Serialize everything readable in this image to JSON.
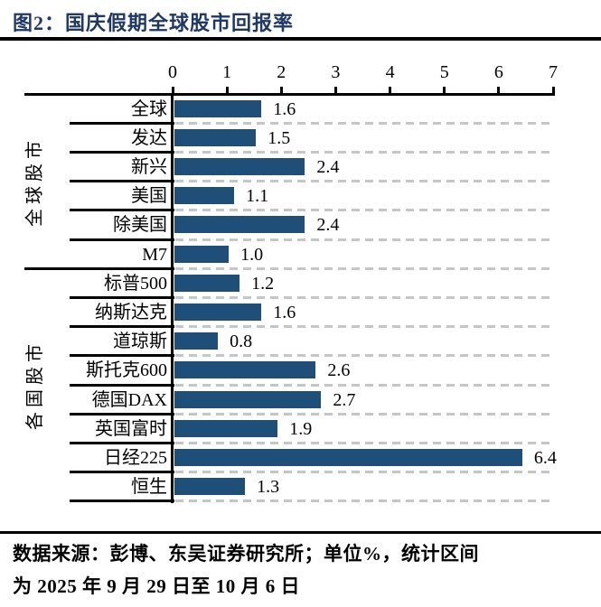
{
  "title": "图2：国庆假期全球股市回报率",
  "footer": {
    "line1": "数据来源：彭博、东吴证券研究所；单位%，统计区间",
    "line2": "为 2025 年 9 月 29 日至 10 月 6 日"
  },
  "colors": {
    "bar": "#1F4E79",
    "title_text": "#1F3864",
    "axis": "#000000",
    "dashed_grid": "#C6C6C6",
    "background": "#FFFFFF"
  },
  "chart_data": {
    "type": "bar",
    "orientation": "horizontal",
    "title": "图2：国庆假期全球股市回报率",
    "unit": "%",
    "xlim": [
      0,
      7
    ],
    "x_ticks": [
      "0",
      "1",
      "2",
      "3",
      "4",
      "5",
      "6",
      "7"
    ],
    "axis_position": "top",
    "grid": "dashed-horizontal-row-separators",
    "legend": "none",
    "value_labels": "right-of-bar, one decimal",
    "groups": [
      {
        "name": "全球股市",
        "categories": [
          "全球",
          "发达",
          "新兴",
          "美国",
          "除美国",
          "M7"
        ],
        "values": [
          1.6,
          1.5,
          2.4,
          1.1,
          2.4,
          1.0
        ]
      },
      {
        "name": "各国股市",
        "categories": [
          "标普500",
          "纳斯达克",
          "道琼斯",
          "斯托克600",
          "德国DAX",
          "英国富时",
          "日经225",
          "恒生"
        ],
        "values": [
          1.2,
          1.6,
          0.8,
          2.6,
          2.7,
          1.9,
          6.4,
          1.3
        ]
      }
    ]
  }
}
